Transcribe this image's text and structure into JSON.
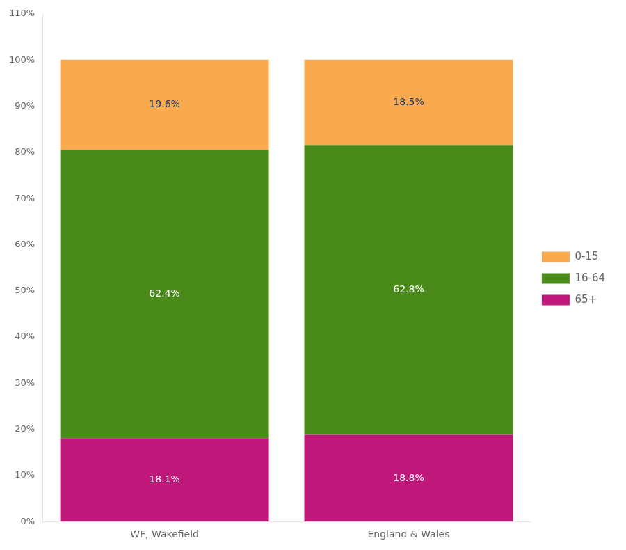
{
  "chart_data": {
    "type": "bar",
    "stacked": true,
    "categories": [
      "WF, Wakefield",
      "England & Wales"
    ],
    "series": [
      {
        "name": "65+",
        "color": "#c0187a",
        "values": [
          18.1,
          18.8
        ],
        "value_labels": [
          "18.1%",
          "18.8%"
        ]
      },
      {
        "name": "16-64",
        "color": "#4a8a1a",
        "values": [
          62.4,
          62.8
        ],
        "value_labels": [
          "62.4%",
          "62.8%"
        ]
      },
      {
        "name": "0-15",
        "color": "#f9a94e",
        "values": [
          19.6,
          18.5
        ],
        "value_labels": [
          "19.6%",
          "18.5%"
        ]
      }
    ],
    "ylim": [
      0,
      110
    ],
    "yticks": [
      {
        "value": 0,
        "label": "0%"
      },
      {
        "value": 10,
        "label": "10%"
      },
      {
        "value": 20,
        "label": "20%"
      },
      {
        "value": 30,
        "label": "30%"
      },
      {
        "value": 40,
        "label": "40%"
      },
      {
        "value": 50,
        "label": "50%"
      },
      {
        "value": 60,
        "label": "60%"
      },
      {
        "value": 70,
        "label": "70%"
      },
      {
        "value": 80,
        "label": "80%"
      },
      {
        "value": 90,
        "label": "90%"
      },
      {
        "value": 100,
        "label": "100%"
      },
      {
        "value": 110,
        "label": "110%"
      }
    ],
    "grid": false,
    "legend": "right",
    "data_labels": true
  }
}
